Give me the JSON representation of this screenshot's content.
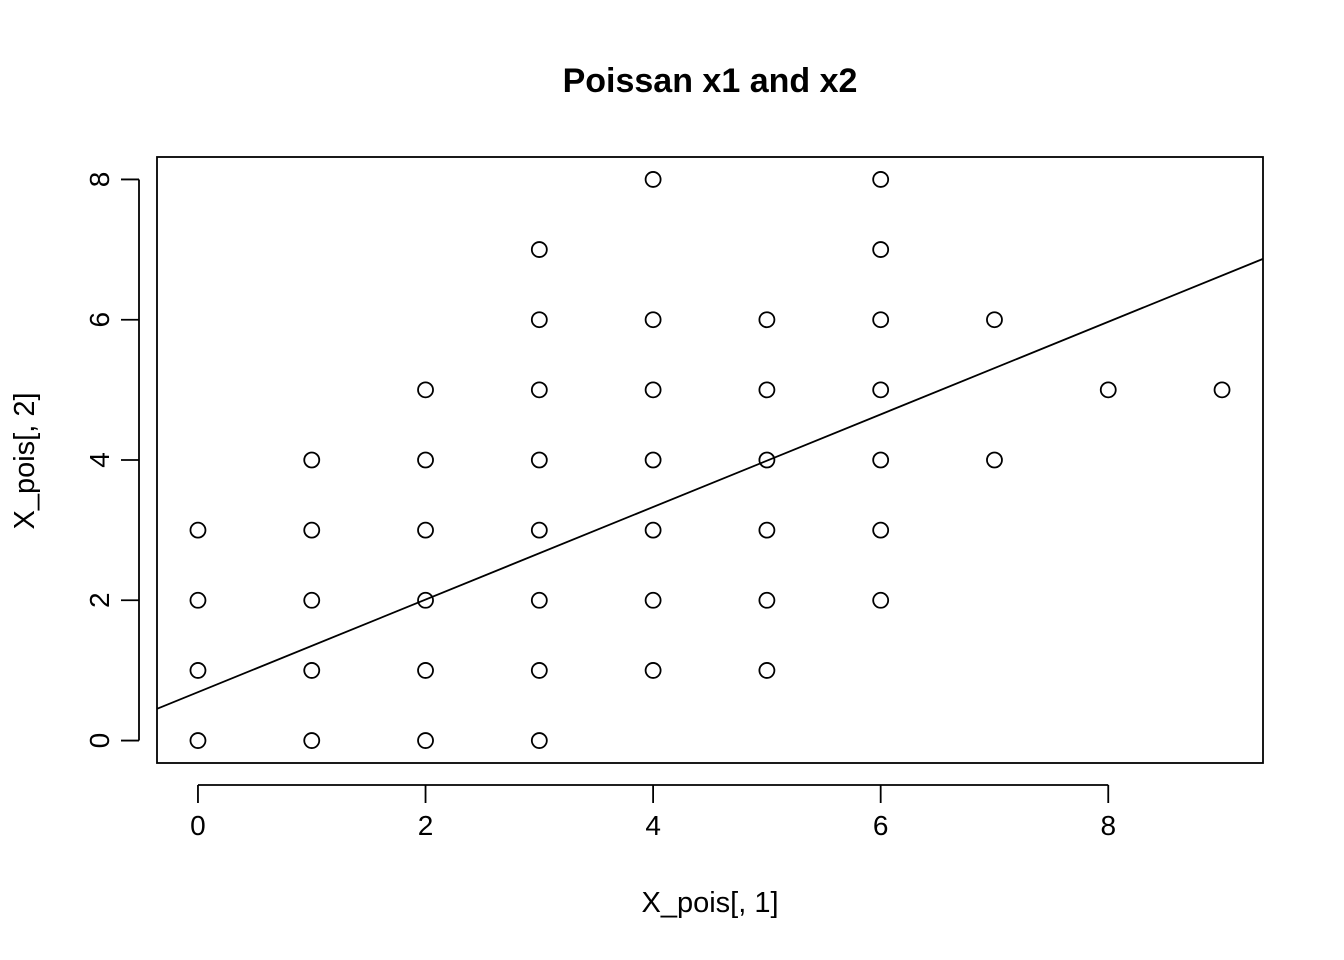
{
  "chart_data": {
    "type": "scatter",
    "title": "Poissan x1 and x2",
    "xlabel": "X_pois[, 1]",
    "ylabel": "X_pois[, 2]",
    "xlim": [
      -0.36,
      9.36
    ],
    "ylim": [
      -0.32,
      8.32
    ],
    "xticks": [
      0,
      2,
      4,
      6,
      8
    ],
    "yticks": [
      0,
      2,
      4,
      6,
      8
    ],
    "x_tick_labels": [
      "0",
      "2",
      "4",
      "6",
      "8"
    ],
    "y_tick_labels": [
      "0",
      "2",
      "4",
      "6",
      "8"
    ],
    "grid": false,
    "marker": "open-circle",
    "points": [
      [
        0,
        0
      ],
      [
        0,
        1
      ],
      [
        0,
        2
      ],
      [
        0,
        3
      ],
      [
        1,
        0
      ],
      [
        1,
        1
      ],
      [
        1,
        2
      ],
      [
        1,
        3
      ],
      [
        1,
        4
      ],
      [
        2,
        0
      ],
      [
        2,
        1
      ],
      [
        2,
        2
      ],
      [
        2,
        3
      ],
      [
        2,
        4
      ],
      [
        2,
        5
      ],
      [
        3,
        0
      ],
      [
        3,
        1
      ],
      [
        3,
        2
      ],
      [
        3,
        3
      ],
      [
        3,
        4
      ],
      [
        3,
        5
      ],
      [
        3,
        6
      ],
      [
        3,
        7
      ],
      [
        4,
        1
      ],
      [
        4,
        2
      ],
      [
        4,
        3
      ],
      [
        4,
        4
      ],
      [
        4,
        5
      ],
      [
        4,
        6
      ],
      [
        4,
        8
      ],
      [
        5,
        1
      ],
      [
        5,
        2
      ],
      [
        5,
        3
      ],
      [
        5,
        4
      ],
      [
        5,
        5
      ],
      [
        5,
        6
      ],
      [
        6,
        2
      ],
      [
        6,
        3
      ],
      [
        6,
        4
      ],
      [
        6,
        5
      ],
      [
        6,
        6
      ],
      [
        6,
        7
      ],
      [
        6,
        8
      ],
      [
        7,
        4
      ],
      [
        7,
        6
      ],
      [
        8,
        5
      ],
      [
        9,
        5
      ]
    ],
    "fit_line": {
      "intercept": 0.69,
      "slope": 0.66
    }
  }
}
